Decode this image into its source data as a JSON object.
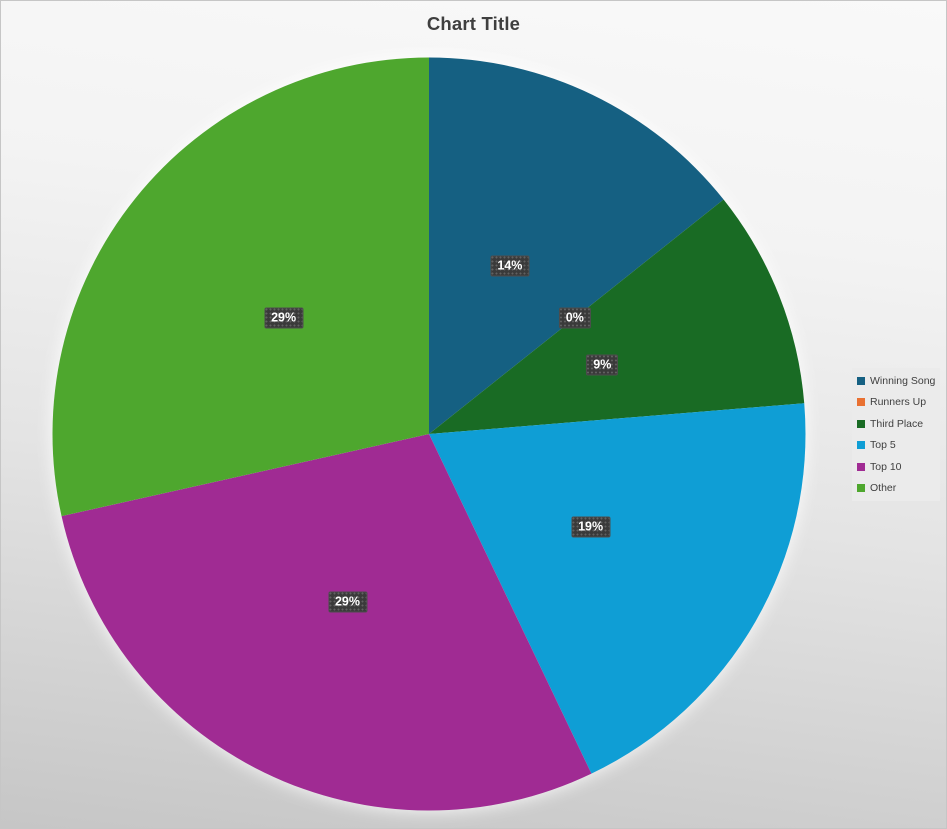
{
  "chart": {
    "background": {
      "gradient_top": "#f9f9f9",
      "gradient_bottom": "#c6c6c6",
      "border_color": "#c6c6c6",
      "title_color": "#3f3f3f"
    },
    "data_label_style": {
      "bg": "#3a3a3a",
      "text_color": "#ffffff",
      "pattern": "light-dots"
    },
    "legend_bg": "#ebebeb",
    "legend_text_color": "#3f3f3f"
  },
  "chart_data": {
    "type": "pie",
    "title": "Chart Title",
    "categories": [
      "Winning Song",
      "Runners Up",
      "Third Place",
      "Top 5",
      "Top 10",
      "Other"
    ],
    "values": [
      14.3,
      0,
      9.4,
      19.2,
      28.6,
      28.5
    ],
    "displayed_labels": [
      "14%",
      "0%",
      "9%",
      "19%",
      "29%",
      "29%"
    ],
    "colors": [
      "#156082",
      "#E97132",
      "#196B24",
      "#0F9ED5",
      "#A02B93",
      "#4EA72E"
    ],
    "legend_position": "right",
    "start_angle_deg": 0,
    "direction": "clockwise"
  }
}
